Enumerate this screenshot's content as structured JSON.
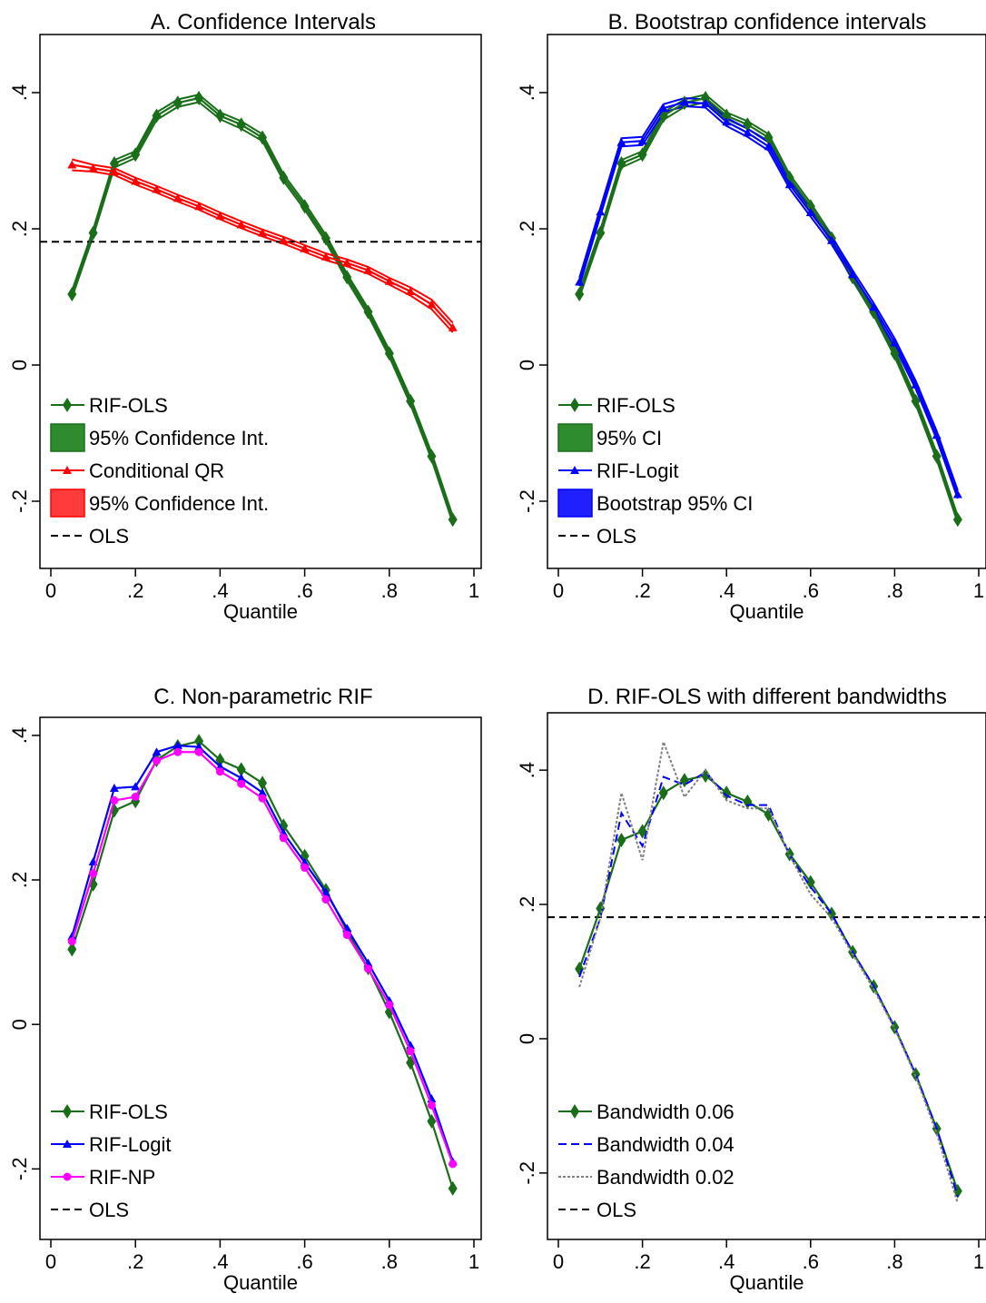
{
  "colors": {
    "green": "#1a6e1a",
    "green_fill": "#2e8b2e",
    "red": "#ff0000",
    "red_fill": "#ff3b3b",
    "blue": "#0000ff",
    "blue_fill": "#2020ff",
    "magenta": "#ff00ff",
    "black": "#000000",
    "gray": "#808080"
  },
  "chart_data": [
    {
      "id": "A",
      "type": "line",
      "title": "A. Confidence Intervals",
      "xlabel": "Quantile",
      "ylabel": "",
      "xlim": [
        0,
        1
      ],
      "ylim": [
        -0.28,
        0.48
      ],
      "xticks": [
        0,
        0.2,
        0.4,
        0.6,
        0.8,
        1
      ],
      "xtick_labels": [
        "0",
        ".2",
        ".4",
        ".6",
        ".8",
        "1"
      ],
      "yticks": [
        -0.2,
        0,
        0.2,
        0.4
      ],
      "ytick_labels": [
        "-.2",
        "0",
        ".2",
        ".4"
      ],
      "x": [
        0.05,
        0.1,
        0.15,
        0.2,
        0.25,
        0.3,
        0.35,
        0.4,
        0.45,
        0.5,
        0.55,
        0.6,
        0.65,
        0.7,
        0.75,
        0.8,
        0.85,
        0.9,
        0.95
      ],
      "legend_position": "bottom-left",
      "series": [
        {
          "name": "RIF-OLS",
          "style": "line",
          "marker": "diamond",
          "color": "green",
          "values": [
            0.104,
            0.194,
            0.296,
            0.309,
            0.366,
            0.385,
            0.392,
            0.366,
            0.353,
            0.334,
            0.275,
            0.233,
            0.186,
            0.129,
            0.078,
            0.017,
            -0.053,
            -0.134,
            -0.227
          ],
          "lower": [
            0.099,
            0.189,
            0.29,
            0.304,
            0.36,
            0.379,
            0.386,
            0.361,
            0.347,
            0.329,
            0.27,
            0.228,
            0.181,
            0.124,
            0.073,
            0.012,
            -0.058,
            -0.139,
            -0.232
          ],
          "upper": [
            0.109,
            0.199,
            0.301,
            0.314,
            0.371,
            0.39,
            0.397,
            0.371,
            0.358,
            0.339,
            0.28,
            0.238,
            0.191,
            0.134,
            0.083,
            0.022,
            -0.048,
            -0.129,
            -0.222
          ]
        },
        {
          "name": "95% Confidence Int.",
          "style": "band",
          "of": 0,
          "color": "green_fill"
        },
        {
          "name": "Conditional QR",
          "style": "line",
          "marker": "triangle",
          "color": "red",
          "values": [
            0.294,
            0.289,
            0.284,
            0.27,
            0.258,
            0.245,
            0.233,
            0.219,
            0.206,
            0.194,
            0.183,
            0.171,
            0.159,
            0.15,
            0.139,
            0.123,
            0.108,
            0.089,
            0.055
          ],
          "lower": [
            0.286,
            0.284,
            0.279,
            0.265,
            0.253,
            0.24,
            0.228,
            0.214,
            0.201,
            0.189,
            0.178,
            0.166,
            0.154,
            0.145,
            0.134,
            0.118,
            0.102,
            0.082,
            0.048
          ],
          "upper": [
            0.302,
            0.294,
            0.289,
            0.275,
            0.263,
            0.25,
            0.238,
            0.224,
            0.211,
            0.199,
            0.188,
            0.176,
            0.164,
            0.155,
            0.144,
            0.128,
            0.114,
            0.096,
            0.062
          ]
        },
        {
          "name": "95% Confidence Int.",
          "style": "band",
          "of": 2,
          "color": "red_fill"
        },
        {
          "name": "OLS",
          "style": "hline",
          "value": 0.181,
          "color": "black",
          "dash": "8,5"
        }
      ]
    },
    {
      "id": "B",
      "type": "line",
      "title": "B. Bootstrap confidence intervals",
      "xlabel": "Quantile",
      "ylabel": "",
      "xlim": [
        0,
        1
      ],
      "ylim": [
        -0.28,
        0.48
      ],
      "xticks": [
        0,
        0.2,
        0.4,
        0.6,
        0.8,
        1
      ],
      "xtick_labels": [
        "0",
        ".2",
        ".4",
        ".6",
        ".8",
        "1"
      ],
      "yticks": [
        -0.2,
        0,
        0.2,
        0.4
      ],
      "ytick_labels": [
        "-.2",
        "0",
        ".2",
        ".4"
      ],
      "x": [
        0.05,
        0.1,
        0.15,
        0.2,
        0.25,
        0.3,
        0.35,
        0.4,
        0.45,
        0.5,
        0.55,
        0.6,
        0.65,
        0.7,
        0.75,
        0.8,
        0.85,
        0.9,
        0.95
      ],
      "legend_position": "bottom-left",
      "series": [
        {
          "name": "RIF-OLS",
          "style": "line",
          "marker": "diamond",
          "color": "green",
          "values": [
            0.104,
            0.194,
            0.296,
            0.309,
            0.366,
            0.385,
            0.392,
            0.366,
            0.353,
            0.334,
            0.275,
            0.233,
            0.186,
            0.129,
            0.078,
            0.017,
            -0.053,
            -0.134,
            -0.227
          ],
          "lower": [
            0.099,
            0.189,
            0.29,
            0.304,
            0.36,
            0.379,
            0.386,
            0.361,
            0.347,
            0.329,
            0.27,
            0.228,
            0.181,
            0.124,
            0.073,
            0.012,
            -0.058,
            -0.139,
            -0.232
          ],
          "upper": [
            0.109,
            0.199,
            0.301,
            0.314,
            0.371,
            0.39,
            0.397,
            0.371,
            0.358,
            0.339,
            0.28,
            0.238,
            0.191,
            0.134,
            0.083,
            0.022,
            -0.048,
            -0.129,
            -0.222
          ]
        },
        {
          "name": "95% CI",
          "style": "band",
          "of": 0,
          "color": "green_fill"
        },
        {
          "name": "RIF-Logit",
          "style": "line",
          "marker": "triangle",
          "color": "blue",
          "values": [
            0.122,
            0.225,
            0.327,
            0.329,
            0.377,
            0.386,
            0.384,
            0.357,
            0.341,
            0.321,
            0.265,
            0.224,
            0.183,
            0.133,
            0.085,
            0.033,
            -0.029,
            -0.103,
            -0.19
          ],
          "lower": [
            0.116,
            0.219,
            0.321,
            0.323,
            0.371,
            0.38,
            0.378,
            0.351,
            0.335,
            0.315,
            0.259,
            0.218,
            0.177,
            0.127,
            0.079,
            0.027,
            -0.035,
            -0.109,
            -0.196
          ],
          "upper": [
            0.128,
            0.231,
            0.333,
            0.335,
            0.383,
            0.392,
            0.39,
            0.363,
            0.347,
            0.327,
            0.271,
            0.23,
            0.189,
            0.139,
            0.091,
            0.039,
            -0.023,
            -0.097,
            -0.184
          ]
        },
        {
          "name": "Bootstrap 95% CI",
          "style": "band",
          "of": 2,
          "color": "blue_fill"
        },
        {
          "name": "OLS",
          "style": "legend-only",
          "color": "black",
          "dash": "8,5"
        }
      ]
    },
    {
      "id": "C",
      "type": "line",
      "title": "C. Non-parametric RIF",
      "xlabel": "Quantile",
      "ylabel": "",
      "xlim": [
        0,
        1
      ],
      "ylim": [
        -0.28,
        0.42
      ],
      "xticks": [
        0,
        0.2,
        0.4,
        0.6,
        0.8,
        1
      ],
      "xtick_labels": [
        "0",
        ".2",
        ".4",
        ".6",
        ".8",
        "1"
      ],
      "yticks": [
        -0.2,
        0,
        0.2,
        0.4
      ],
      "ytick_labels": [
        "-.2",
        "0",
        ".2",
        ".4"
      ],
      "x": [
        0.05,
        0.1,
        0.15,
        0.2,
        0.25,
        0.3,
        0.35,
        0.4,
        0.45,
        0.5,
        0.55,
        0.6,
        0.65,
        0.7,
        0.75,
        0.8,
        0.85,
        0.9,
        0.95
      ],
      "legend_position": "bottom-left",
      "series": [
        {
          "name": "RIF-OLS",
          "style": "line",
          "marker": "diamond",
          "color": "green",
          "values": [
            0.104,
            0.194,
            0.296,
            0.309,
            0.366,
            0.385,
            0.392,
            0.366,
            0.353,
            0.334,
            0.275,
            0.233,
            0.186,
            0.129,
            0.078,
            0.017,
            -0.053,
            -0.134,
            -0.227
          ]
        },
        {
          "name": "RIF-Logit",
          "style": "line",
          "marker": "triangle",
          "color": "blue",
          "values": [
            0.122,
            0.225,
            0.327,
            0.329,
            0.377,
            0.386,
            0.384,
            0.357,
            0.341,
            0.321,
            0.265,
            0.224,
            0.183,
            0.133,
            0.085,
            0.033,
            -0.029,
            -0.103,
            -0.19
          ]
        },
        {
          "name": "RIF-NP",
          "style": "line",
          "marker": "circle",
          "color": "magenta",
          "values": [
            0.115,
            0.209,
            0.31,
            0.315,
            0.365,
            0.377,
            0.377,
            0.35,
            0.333,
            0.313,
            0.258,
            0.217,
            0.173,
            0.124,
            0.077,
            0.027,
            -0.037,
            -0.112,
            -0.193
          ]
        },
        {
          "name": "OLS",
          "style": "legend-only",
          "color": "black",
          "dash": "8,5"
        }
      ]
    },
    {
      "id": "D",
      "type": "line",
      "title": "D. RIF-OLS with different bandwidths",
      "xlabel": "Quantile",
      "ylabel": "",
      "xlim": [
        0,
        1
      ],
      "ylim": [
        -0.28,
        0.48
      ],
      "xticks": [
        0,
        0.2,
        0.4,
        0.6,
        0.8,
        1
      ],
      "xtick_labels": [
        "0",
        ".2",
        ".4",
        ".6",
        ".8",
        "1"
      ],
      "yticks": [
        -0.2,
        0,
        0.2,
        0.4
      ],
      "ytick_labels": [
        "-.2",
        "0",
        ".2",
        ".4"
      ],
      "x": [
        0.05,
        0.1,
        0.15,
        0.2,
        0.25,
        0.3,
        0.35,
        0.4,
        0.45,
        0.5,
        0.55,
        0.6,
        0.65,
        0.7,
        0.75,
        0.8,
        0.85,
        0.9,
        0.95
      ],
      "legend_position": "bottom-left",
      "series": [
        {
          "name": "Bandwidth 0.06",
          "style": "line",
          "marker": "diamond",
          "color": "green",
          "values": [
            0.104,
            0.194,
            0.296,
            0.309,
            0.366,
            0.385,
            0.392,
            0.366,
            0.353,
            0.334,
            0.275,
            0.233,
            0.186,
            0.129,
            0.078,
            0.017,
            -0.053,
            -0.134,
            -0.227
          ]
        },
        {
          "name": "Bandwidth 0.04",
          "style": "line",
          "color": "blue",
          "dash": "9,5",
          "values": [
            0.092,
            0.18,
            0.336,
            0.287,
            0.39,
            0.378,
            0.397,
            0.362,
            0.348,
            0.348,
            0.273,
            0.226,
            0.186,
            0.129,
            0.078,
            0.017,
            -0.053,
            -0.134,
            -0.235
          ]
        },
        {
          "name": "Bandwidth 0.02",
          "style": "line",
          "color": "gray",
          "dash": "3,2",
          "values": [
            0.077,
            0.18,
            0.366,
            0.266,
            0.442,
            0.36,
            0.4,
            0.355,
            0.343,
            0.343,
            0.273,
            0.215,
            0.18,
            0.126,
            0.074,
            0.015,
            -0.056,
            -0.141,
            -0.245
          ]
        },
        {
          "name": "OLS",
          "style": "hline",
          "value": 0.181,
          "color": "black",
          "dash": "8,5"
        }
      ]
    }
  ]
}
